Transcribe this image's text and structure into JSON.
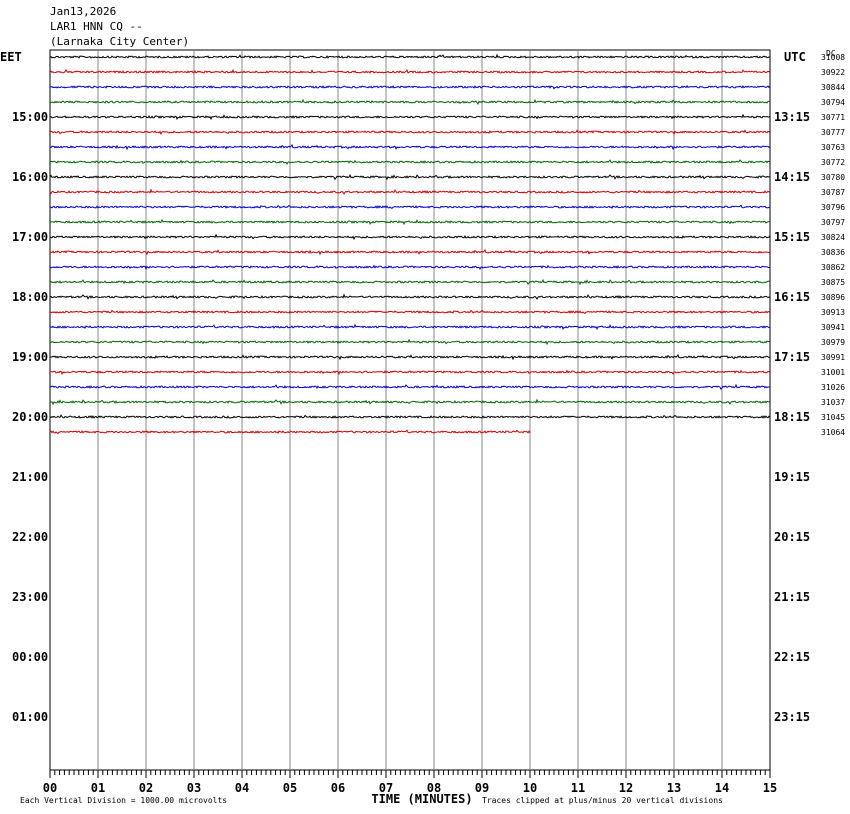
{
  "header": {
    "date": "Jan13,2026",
    "station": "LAR1 HNN CQ --",
    "location": "(Larnaka City Center)"
  },
  "chart_data": {
    "type": "line",
    "left_timezone": "EET",
    "right_timezone": "UTC",
    "right_column_label": "DC",
    "x_axis": {
      "label": "TIME (MINUTES)",
      "ticks": [
        "00",
        "01",
        "02",
        "03",
        "04",
        "05",
        "06",
        "07",
        "08",
        "09",
        "10",
        "11",
        "12",
        "13",
        "14",
        "15"
      ],
      "range": [
        0,
        15
      ]
    },
    "row_labels_left": [
      "15:00",
      "16:00",
      "17:00",
      "18:00",
      "19:00",
      "20:00",
      "21:00",
      "22:00",
      "23:00",
      "00:00",
      "01:00"
    ],
    "row_labels_right": [
      "13:15",
      "14:15",
      "15:15",
      "16:15",
      "17:15",
      "18:15",
      "19:15",
      "20:15",
      "21:15",
      "22:15",
      "23:15"
    ],
    "trace_colors": [
      "#000000",
      "#cc0000",
      "#0000cc",
      "#006600"
    ],
    "traces": [
      {
        "dc": "31008",
        "end_minute": 15
      },
      {
        "dc": "30922",
        "end_minute": 15
      },
      {
        "dc": "30844",
        "end_minute": 15
      },
      {
        "dc": "30794",
        "end_minute": 15
      },
      {
        "dc": "30771",
        "end_minute": 15
      },
      {
        "dc": "30777",
        "end_minute": 15
      },
      {
        "dc": "30763",
        "end_minute": 15
      },
      {
        "dc": "30772",
        "end_minute": 15
      },
      {
        "dc": "30780",
        "end_minute": 15
      },
      {
        "dc": "30787",
        "end_minute": 15
      },
      {
        "dc": "30796",
        "end_minute": 15
      },
      {
        "dc": "30797",
        "end_minute": 15
      },
      {
        "dc": "30824",
        "end_minute": 15
      },
      {
        "dc": "30836",
        "end_minute": 15
      },
      {
        "dc": "30862",
        "end_minute": 15
      },
      {
        "dc": "30875",
        "end_minute": 15
      },
      {
        "dc": "30896",
        "end_minute": 15
      },
      {
        "dc": "30913",
        "end_minute": 15
      },
      {
        "dc": "30941",
        "end_minute": 15
      },
      {
        "dc": "30979",
        "end_minute": 15
      },
      {
        "dc": "30991",
        "end_minute": 15
      },
      {
        "dc": "31001",
        "end_minute": 15
      },
      {
        "dc": "31026",
        "end_minute": 15
      },
      {
        "dc": "31037",
        "end_minute": 15
      },
      {
        "dc": "31045",
        "end_minute": 15
      },
      {
        "dc": "31064",
        "end_minute": 10
      }
    ],
    "footer_left": "Each Vertical Division = 1000.00 microvolts",
    "footer_right": "Traces clipped at plus/minus 20 vertical divisions"
  }
}
